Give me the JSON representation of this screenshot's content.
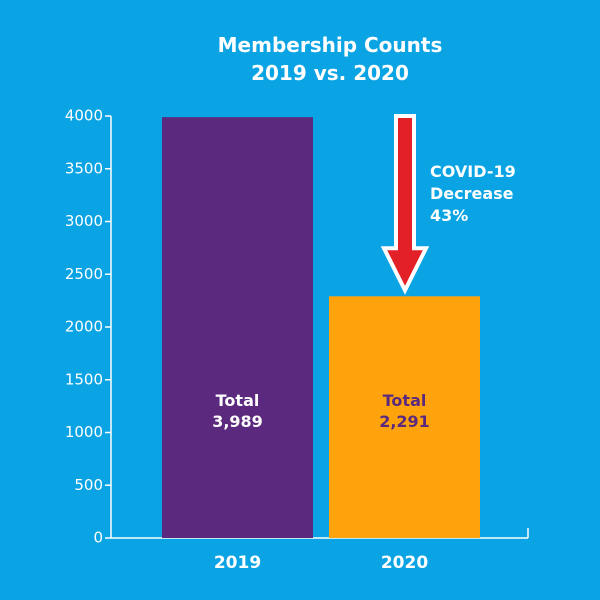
{
  "chart_data": {
    "type": "bar",
    "title": [
      "Membership Counts",
      "2019 vs. 2020"
    ],
    "categories": [
      "2019",
      "2020"
    ],
    "values": [
      3989,
      2291
    ],
    "data_labels": [
      {
        "line1": "Total",
        "line2": "3,989"
      },
      {
        "line1": "Total",
        "line2": "2,291"
      }
    ],
    "bar_colors": [
      "#5b2a7e",
      "#ffa30d"
    ],
    "label_colors": [
      "#ffffff",
      "#5b2a7e"
    ],
    "xlabel": "",
    "ylabel": "",
    "ylim": [
      0,
      4000
    ],
    "yticks": [
      0,
      500,
      1000,
      1500,
      2000,
      2500,
      3000,
      3500,
      4000
    ],
    "grid": false,
    "annotation": {
      "lines": [
        "COVID-19",
        "Decrease",
        "43%"
      ],
      "arrow_from_value": 4000,
      "arrow_to_value": 2291
    },
    "background": "#0aa3e4",
    "arrow_color": "#e32028"
  }
}
